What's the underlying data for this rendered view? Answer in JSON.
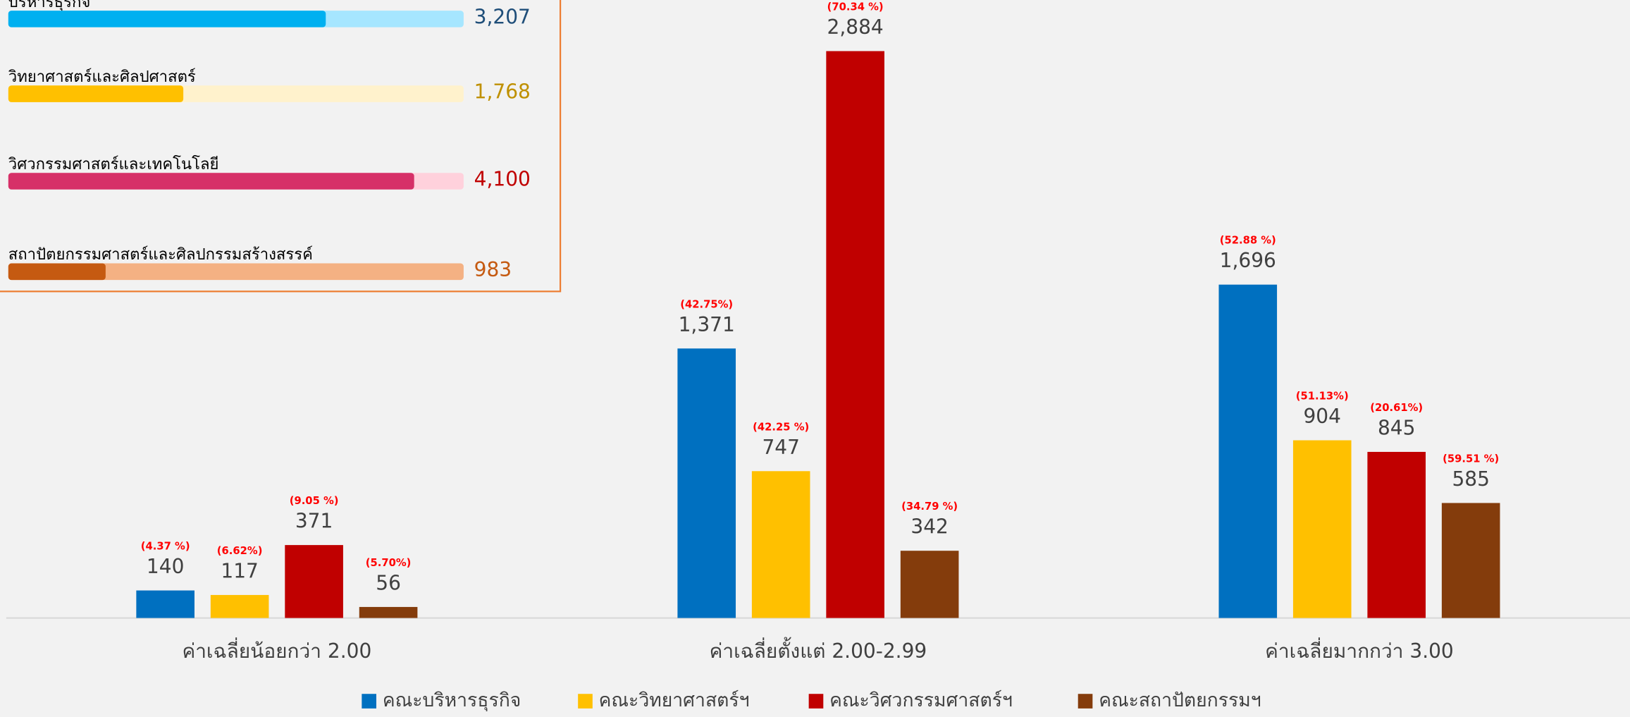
{
  "chart_data": {
    "type": "bar",
    "categories": [
      "ค่าเฉลี่ยน้อยกว่า 2.00",
      "ค่าเฉลี่ยตั้งแต่ 2.00-2.99",
      "ค่าเฉลี่ยมากกว่า 3.00"
    ],
    "series": [
      {
        "name": "คณะบริหารธุรกิจ",
        "color": "#0070c0",
        "values": [
          140,
          1371,
          1696
        ],
        "value_labels": [
          "140",
          "1,371",
          "1,696"
        ],
        "share_labels": [
          "(4.37 %)",
          "(42.75%)",
          "(52.88 %)"
        ]
      },
      {
        "name": "คณะวิทยาศาสตร์ฯ",
        "color": "#ffc000",
        "values": [
          117,
          747,
          904
        ],
        "value_labels": [
          "117",
          "747",
          "904"
        ],
        "share_labels": [
          "(6.62%)",
          "(42.25 %)",
          "(51.13%)"
        ]
      },
      {
        "name": "คณะวิศวกรรมศาสตร์ฯ",
        "color": "#c00000",
        "values": [
          371,
          2884,
          845
        ],
        "value_labels": [
          "371",
          "2,884",
          "845"
        ],
        "share_labels": [
          "(9.05 %)",
          "(70.34 %)",
          "(20.61%)"
        ]
      },
      {
        "name": "คณะสถาปัตยกรรมฯ",
        "color": "#843c0c",
        "values": [
          56,
          342,
          585
        ],
        "value_labels": [
          "56",
          "342",
          "585"
        ],
        "share_labels": [
          "(5.70%)",
          "(34.79 %)",
          "(59.51 %)"
        ]
      }
    ],
    "ylim": [
      0,
      3000
    ],
    "panel": {
      "xlim": [
        0,
        4600
      ],
      "rows": [
        {
          "name": "บริหารธุรกิจ",
          "value": 3207,
          "value_label": "3,207",
          "color": "#00b0f0",
          "track": "#a6e6ff",
          "text_color": "#1f4e79"
        },
        {
          "name": "วิทยาศาสตร์และศิลปศาสตร์",
          "value": 1768,
          "value_label": "1,768",
          "color": "#ffc000",
          "track": "#fff2cc",
          "text_color": "#bf9000"
        },
        {
          "name": "วิศวกรรมศาสตร์และเทคโนโลยี",
          "value": 4100,
          "value_label": "4,100",
          "color": "#d63068",
          "track": "#ffd1dc",
          "text_color": "#c00000"
        },
        {
          "name": "สถาปัตยกรรมศาสตร์และศิลปกรรมสร้างสรรค์",
          "value": 983,
          "value_label": "983",
          "color": "#c55a11",
          "track": "#f4b183",
          "text_color": "#c55a11"
        }
      ]
    }
  }
}
